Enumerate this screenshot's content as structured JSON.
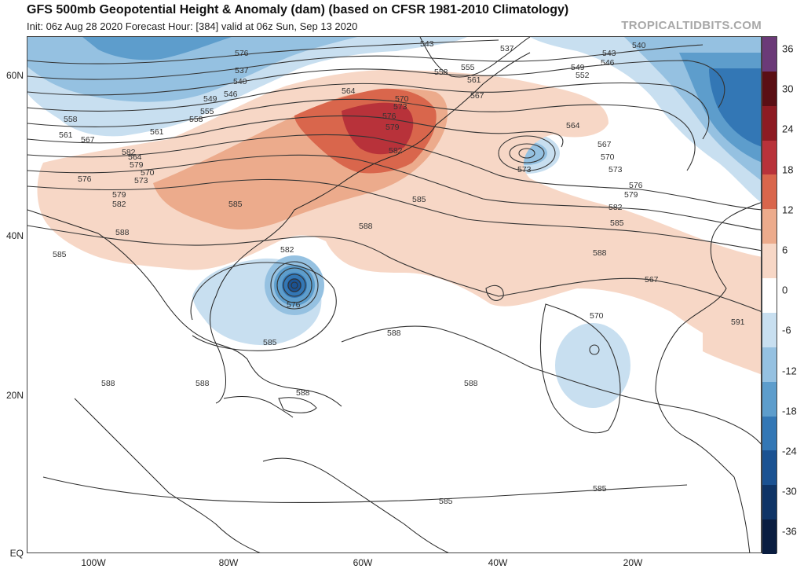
{
  "header": {
    "title": "GFS 500mb Geopotential Height & Anomaly (dam) (based on CFSR 1981-2010 Climatology)",
    "subtitle": "Init: 06z Aug 28 2020   Forecast Hour: [384]   valid at 06z Sun, Sep 13 2020",
    "source": "TROPICALTIDBITS.COM"
  },
  "axes": {
    "lat_labels": [
      "60N",
      "40N",
      "20N",
      "EQ"
    ],
    "lon_labels": [
      "100W",
      "80W",
      "60W",
      "40W",
      "20W"
    ]
  },
  "colorbar": {
    "labels": [
      "36",
      "30",
      "24",
      "18",
      "12",
      "6",
      "0",
      "-6",
      "-12",
      "-18",
      "-24",
      "-30",
      "-36"
    ],
    "colors": [
      "#6b3a78",
      "#5a0f14",
      "#8d1b22",
      "#b8323a",
      "#d9664c",
      "#ecab8c",
      "#f7d7c6",
      "#ffffff",
      "#c8dff0",
      "#95c1e1",
      "#5d9dcc",
      "#3377b5",
      "#1b5292",
      "#0f3466",
      "#0a1d40"
    ]
  },
  "contour_labels": [
    "543",
    "537",
    "540",
    "543",
    "546",
    "549",
    "552",
    "555",
    "558",
    "561",
    "564",
    "567",
    "570",
    "573",
    "576",
    "579",
    "582",
    "585",
    "588",
    "591",
    "537",
    "540",
    "546",
    "549",
    "555",
    "558",
    "561",
    "564",
    "567",
    "570",
    "573",
    "576",
    "579",
    "582",
    "585",
    "588",
    "585",
    "582",
    "576",
    "585",
    "588",
    "588",
    "588",
    "588",
    "588",
    "585",
    "585",
    "558",
    "561",
    "564",
    "567",
    "570",
    "573",
    "576",
    "579",
    "582",
    "585",
    "588",
    "567",
    "570",
    "573",
    "576",
    "579",
    "582",
    "585",
    "588",
    "561",
    "564",
    "558",
    "555"
  ]
}
